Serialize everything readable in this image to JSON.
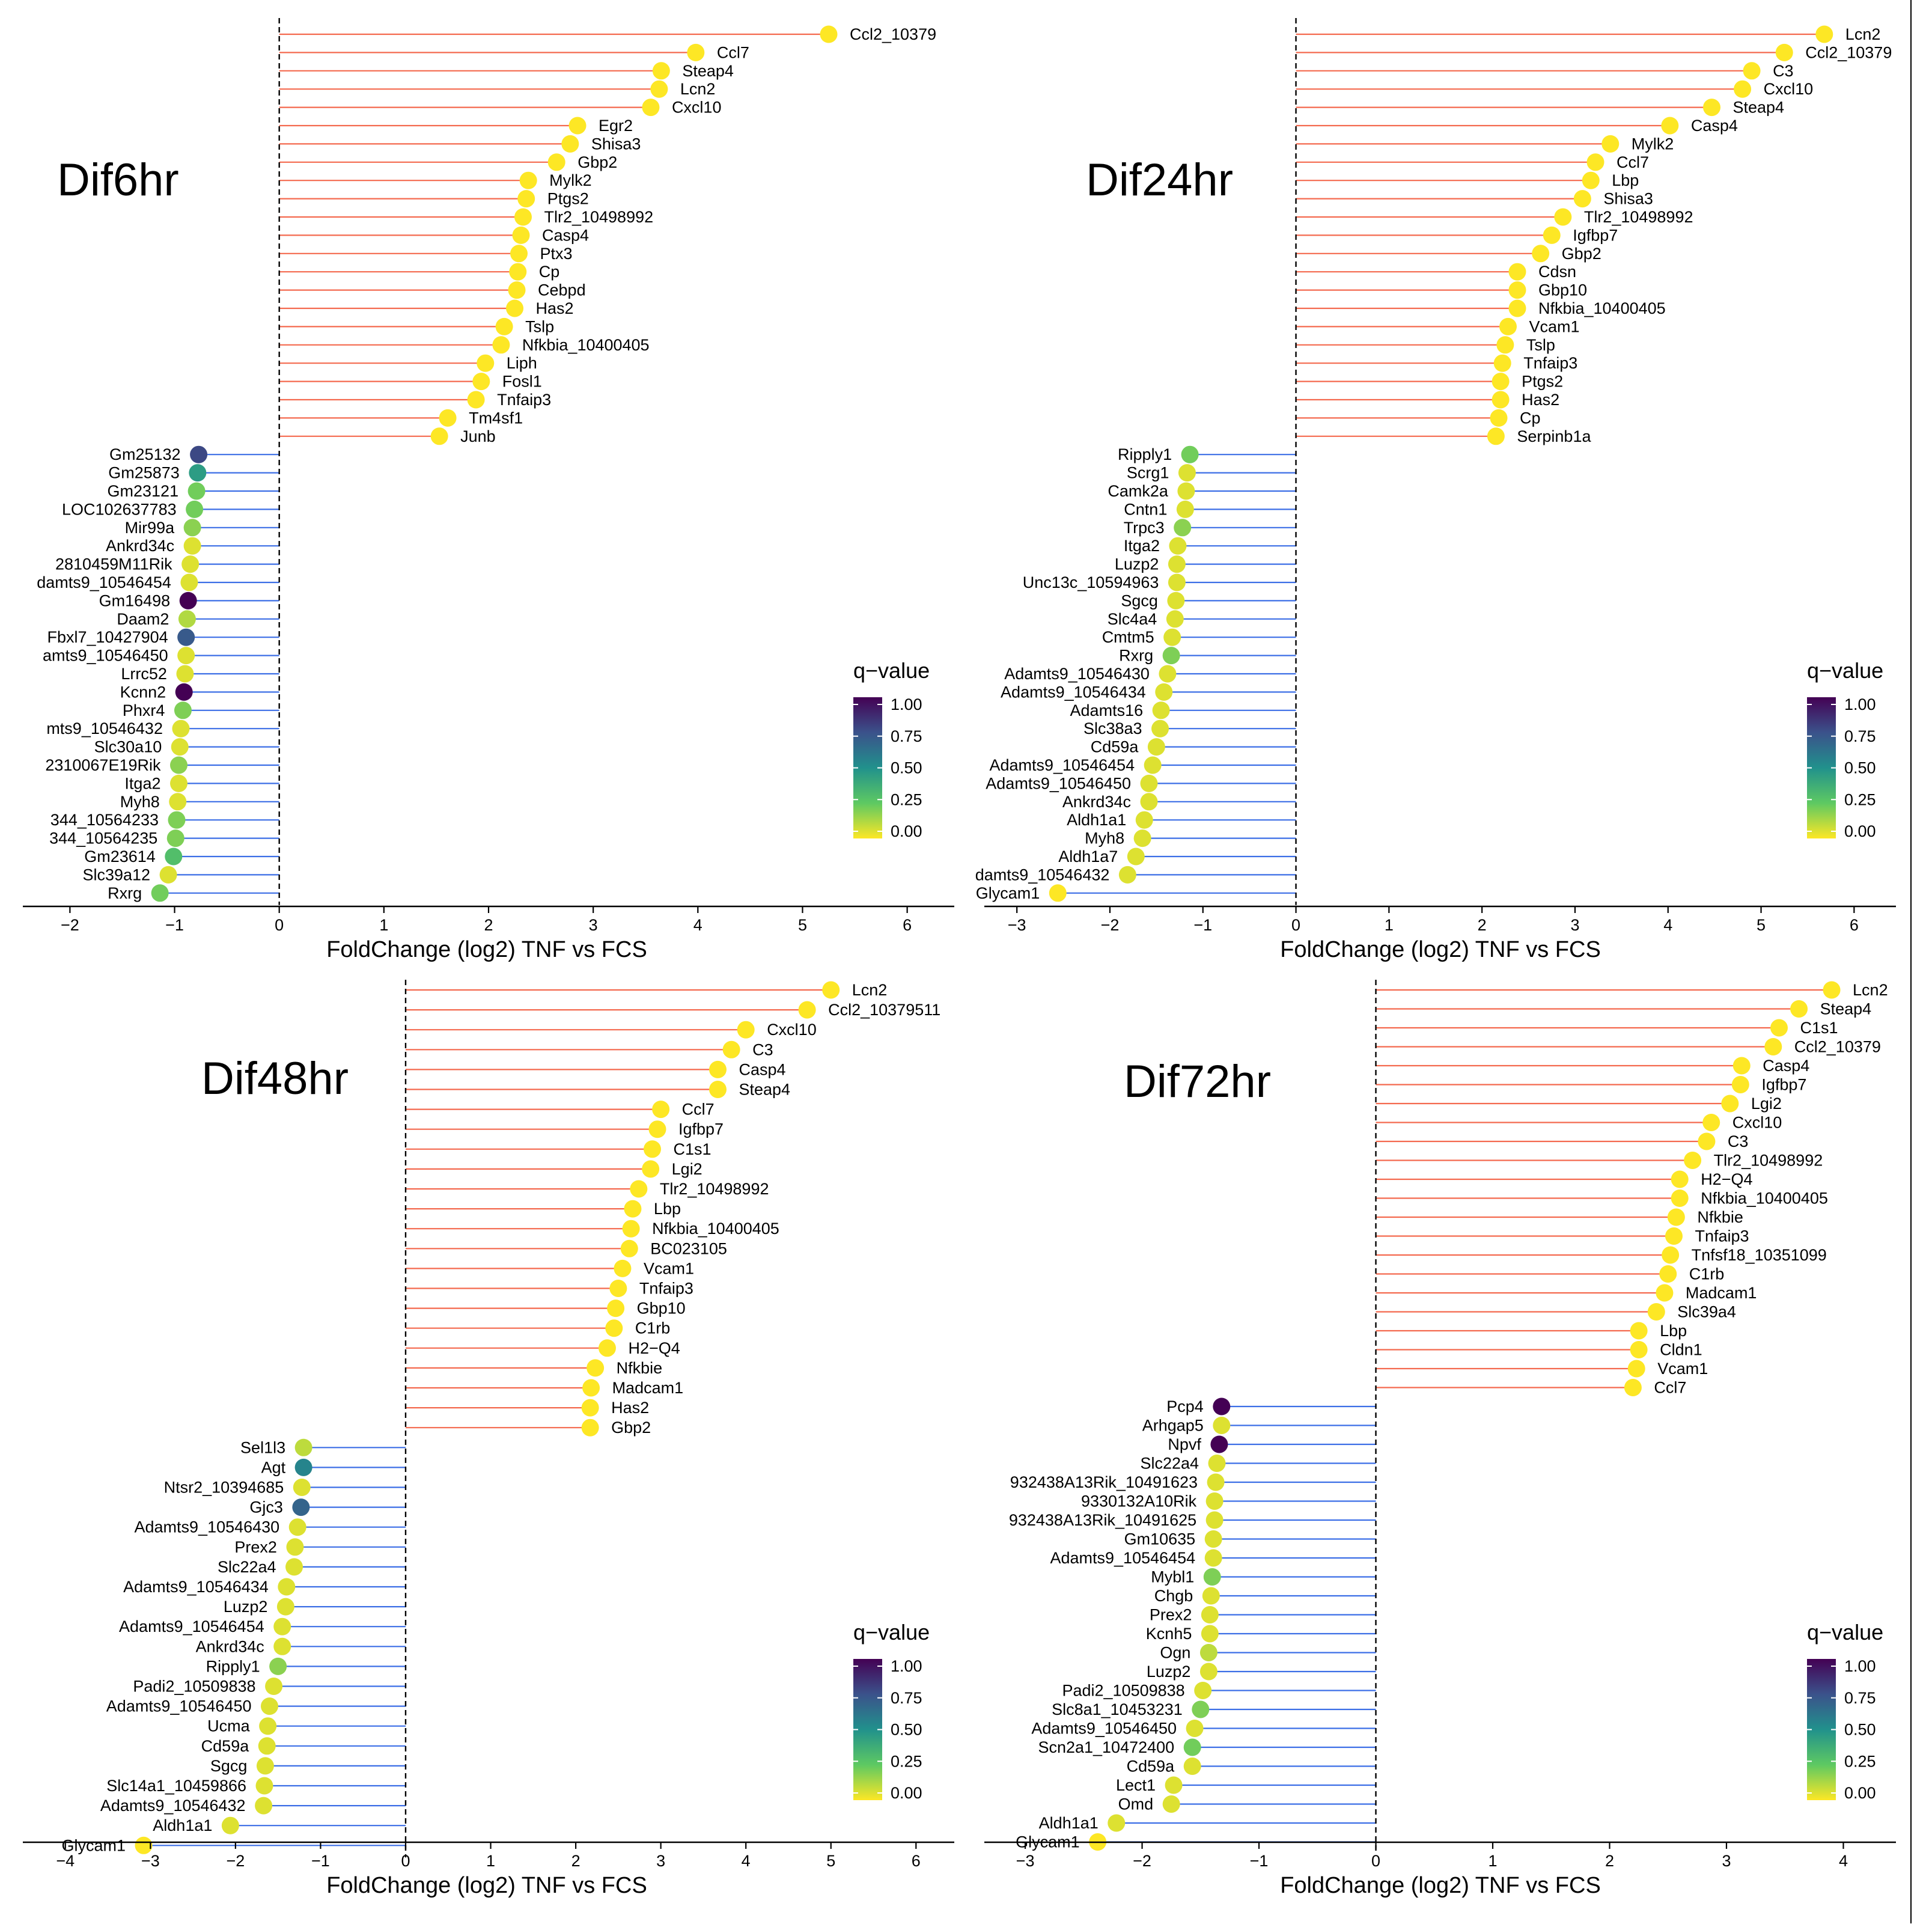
{
  "colors": {
    "up_stem": "#f4694e",
    "down_stem": "#3b6ee6",
    "axis": "#000000",
    "viridis": [
      "#fde725",
      "#5ec962",
      "#21918c",
      "#3b528b",
      "#440154"
    ]
  },
  "chart_data": [
    {
      "type": "lollipop",
      "title": "Dif6hr",
      "xlabel": "FoldChange (log2) TNF vs FCS",
      "xlim": [
        -2.45,
        6.45
      ],
      "xticks": [
        -2,
        -1,
        0,
        1,
        2,
        3,
        4,
        5,
        6
      ],
      "legend": {
        "title": "q−value",
        "ticks": [
          "1.00",
          "0.75",
          "0.50",
          "0.25",
          "0.00"
        ]
      },
      "genes": [
        {
          "label": "Ccl2_10379",
          "fc": 5.25,
          "q": 0.0
        },
        {
          "label": "Ccl7",
          "fc": 3.98,
          "q": 0.0
        },
        {
          "label": "Steap4",
          "fc": 3.65,
          "q": 0.0
        },
        {
          "label": "Lcn2",
          "fc": 3.63,
          "q": 0.0
        },
        {
          "label": "Cxcl10",
          "fc": 3.55,
          "q": 0.0
        },
        {
          "label": "Egr2",
          "fc": 2.85,
          "q": 0.0
        },
        {
          "label": "Shisa3",
          "fc": 2.78,
          "q": 0.0
        },
        {
          "label": "Gbp2",
          "fc": 2.65,
          "q": 0.0
        },
        {
          "label": "Mylk2",
          "fc": 2.38,
          "q": 0.0
        },
        {
          "label": "Ptgs2",
          "fc": 2.36,
          "q": 0.0
        },
        {
          "label": "Tlr2_10498992",
          "fc": 2.33,
          "q": 0.0
        },
        {
          "label": "Casp4",
          "fc": 2.31,
          "q": 0.0
        },
        {
          "label": "Ptx3",
          "fc": 2.29,
          "q": 0.0
        },
        {
          "label": "Cp",
          "fc": 2.28,
          "q": 0.0
        },
        {
          "label": "Cebpd",
          "fc": 2.27,
          "q": 0.0
        },
        {
          "label": "Has2",
          "fc": 2.25,
          "q": 0.0
        },
        {
          "label": "Tslp",
          "fc": 2.15,
          "q": 0.0
        },
        {
          "label": "Nfkbia_10400405",
          "fc": 2.12,
          "q": 0.0
        },
        {
          "label": "Liph",
          "fc": 1.97,
          "q": 0.0
        },
        {
          "label": "Fosl1",
          "fc": 1.93,
          "q": 0.0
        },
        {
          "label": "Tnfaip3",
          "fc": 1.88,
          "q": 0.0
        },
        {
          "label": "Tm4sf1",
          "fc": 1.61,
          "q": 0.0
        },
        {
          "label": "Junb",
          "fc": 1.53,
          "q": 0.0
        },
        {
          "label": "Gm25132",
          "fc": -0.77,
          "q": 0.78
        },
        {
          "label": "Gm25873",
          "fc": -0.78,
          "q": 0.45
        },
        {
          "label": "Gm23121",
          "fc": -0.79,
          "q": 0.22
        },
        {
          "label": "LOC102637783",
          "fc": -0.81,
          "q": 0.22
        },
        {
          "label": "Mir99a",
          "fc": -0.83,
          "q": 0.18
        },
        {
          "label": "Ankrd34c",
          "fc": -0.83,
          "q": 0.05
        },
        {
          "label": "2810459M11Rik",
          "fc": -0.85,
          "q": 0.05
        },
        {
          "label": "damts9_10546454",
          "fc": -0.86,
          "q": 0.05
        },
        {
          "label": "Gm16498",
          "fc": -0.87,
          "q": 1.0
        },
        {
          "label": "Daam2",
          "fc": -0.88,
          "q": 0.12
        },
        {
          "label": "Fbxl7_10427904",
          "fc": -0.89,
          "q": 0.72
        },
        {
          "label": "amts9_10546450",
          "fc": -0.89,
          "q": 0.05
        },
        {
          "label": "Lrrc52",
          "fc": -0.9,
          "q": 0.05
        },
        {
          "label": "Kcnn2",
          "fc": -0.91,
          "q": 1.0
        },
        {
          "label": "Phxr4",
          "fc": -0.92,
          "q": 0.2
        },
        {
          "label": "mts9_10546432",
          "fc": -0.94,
          "q": 0.05
        },
        {
          "label": "Slc30a10",
          "fc": -0.95,
          "q": 0.05
        },
        {
          "label": "2310067E19Rik",
          "fc": -0.96,
          "q": 0.18
        },
        {
          "label": "Itga2",
          "fc": -0.96,
          "q": 0.05
        },
        {
          "label": "Myh8",
          "fc": -0.97,
          "q": 0.05
        },
        {
          "label": "344_10564233",
          "fc": -0.98,
          "q": 0.2
        },
        {
          "label": "344_10564235",
          "fc": -0.99,
          "q": 0.2
        },
        {
          "label": "Gm23614",
          "fc": -1.01,
          "q": 0.3
        },
        {
          "label": "Slc39a12",
          "fc": -1.06,
          "q": 0.05
        },
        {
          "label": "Rxrg",
          "fc": -1.14,
          "q": 0.22
        }
      ]
    },
    {
      "type": "lollipop",
      "title": "Dif24hr",
      "xlabel": "FoldChange (log2) TNF vs FCS",
      "xlim": [
        -3.35,
        6.45
      ],
      "xticks": [
        -3,
        -2,
        -1,
        0,
        1,
        2,
        3,
        4,
        5,
        6
      ],
      "legend": {
        "title": "q−value",
        "ticks": [
          "1.00",
          "0.75",
          "0.50",
          "0.25",
          "0.00"
        ]
      },
      "genes": [
        {
          "label": "Lcn2",
          "fc": 5.68,
          "q": 0.0
        },
        {
          "label": "Ccl2_10379",
          "fc": 5.25,
          "q": 0.0
        },
        {
          "label": "C3",
          "fc": 4.9,
          "q": 0.0
        },
        {
          "label": "Cxcl10",
          "fc": 4.8,
          "q": 0.0
        },
        {
          "label": "Steap4",
          "fc": 4.47,
          "q": 0.0
        },
        {
          "label": "Casp4",
          "fc": 4.02,
          "q": 0.0
        },
        {
          "label": "Mylk2",
          "fc": 3.38,
          "q": 0.0
        },
        {
          "label": "Ccl7",
          "fc": 3.22,
          "q": 0.0
        },
        {
          "label": "Lbp",
          "fc": 3.17,
          "q": 0.0
        },
        {
          "label": "Shisa3",
          "fc": 3.08,
          "q": 0.0
        },
        {
          "label": "Tlr2_10498992",
          "fc": 2.87,
          "q": 0.0
        },
        {
          "label": "Igfbp7",
          "fc": 2.75,
          "q": 0.0
        },
        {
          "label": "Gbp2",
          "fc": 2.63,
          "q": 0.0
        },
        {
          "label": "Cdsn",
          "fc": 2.38,
          "q": 0.0
        },
        {
          "label": "Gbp10",
          "fc": 2.38,
          "q": 0.0
        },
        {
          "label": "Nfkbia_10400405",
          "fc": 2.38,
          "q": 0.0
        },
        {
          "label": "Vcam1",
          "fc": 2.28,
          "q": 0.0
        },
        {
          "label": "Tslp",
          "fc": 2.25,
          "q": 0.0
        },
        {
          "label": "Tnfaip3",
          "fc": 2.22,
          "q": 0.0
        },
        {
          "label": "Ptgs2",
          "fc": 2.2,
          "q": 0.0
        },
        {
          "label": "Has2",
          "fc": 2.2,
          "q": 0.0
        },
        {
          "label": "Cp",
          "fc": 2.18,
          "q": 0.0
        },
        {
          "label": "Serpinb1a",
          "fc": 2.15,
          "q": 0.0
        },
        {
          "label": "Ripply1",
          "fc": -1.14,
          "q": 0.22
        },
        {
          "label": "Scrg1",
          "fc": -1.17,
          "q": 0.05
        },
        {
          "label": "Camk2a",
          "fc": -1.18,
          "q": 0.05
        },
        {
          "label": "Cntn1",
          "fc": -1.19,
          "q": 0.05
        },
        {
          "label": "Trpc3",
          "fc": -1.22,
          "q": 0.18
        },
        {
          "label": "Itga2",
          "fc": -1.27,
          "q": 0.05
        },
        {
          "label": "Luzp2",
          "fc": -1.28,
          "q": 0.05
        },
        {
          "label": "Unc13c_10594963",
          "fc": -1.28,
          "q": 0.05
        },
        {
          "label": "Sgcg",
          "fc": -1.29,
          "q": 0.05
        },
        {
          "label": "Slc4a4",
          "fc": -1.3,
          "q": 0.05
        },
        {
          "label": "Cmtm5",
          "fc": -1.33,
          "q": 0.05
        },
        {
          "label": "Rxrg",
          "fc": -1.34,
          "q": 0.2
        },
        {
          "label": "Adamts9_10546430",
          "fc": -1.38,
          "q": 0.05
        },
        {
          "label": "Adamts9_10546434",
          "fc": -1.42,
          "q": 0.05
        },
        {
          "label": "Adamts16",
          "fc": -1.45,
          "q": 0.05
        },
        {
          "label": "Slc38a3",
          "fc": -1.46,
          "q": 0.05
        },
        {
          "label": "Cd59a",
          "fc": -1.5,
          "q": 0.05
        },
        {
          "label": "Adamts9_10546454",
          "fc": -1.54,
          "q": 0.05
        },
        {
          "label": "Adamts9_10546450",
          "fc": -1.58,
          "q": 0.05
        },
        {
          "label": "Ankrd34c",
          "fc": -1.58,
          "q": 0.05
        },
        {
          "label": "Aldh1a1",
          "fc": -1.63,
          "q": 0.05
        },
        {
          "label": "Myh8",
          "fc": -1.65,
          "q": 0.05
        },
        {
          "label": "Aldh1a7",
          "fc": -1.72,
          "q": 0.05
        },
        {
          "label": "damts9_10546432",
          "fc": -1.81,
          "q": 0.05
        },
        {
          "label": "Glycam1",
          "fc": -2.56,
          "q": 0.0
        }
      ]
    },
    {
      "type": "lollipop",
      "title": "Dif48hr",
      "xlabel": "FoldChange (log2) TNF vs FCS",
      "xlim": [
        -4.5,
        6.45
      ],
      "xticks": [
        -4,
        -3,
        -2,
        -1,
        0,
        1,
        2,
        3,
        4,
        5,
        6
      ],
      "legend": {
        "title": "q−value",
        "ticks": [
          "1.00",
          "0.75",
          "0.50",
          "0.25",
          "0.00"
        ]
      },
      "genes": [
        {
          "label": "Lcn2",
          "fc": 5.0,
          "q": 0.0
        },
        {
          "label": "Ccl2_10379511",
          "fc": 4.72,
          "q": 0.0
        },
        {
          "label": "Cxcl10",
          "fc": 4.0,
          "q": 0.0
        },
        {
          "label": "C3",
          "fc": 3.83,
          "q": 0.0
        },
        {
          "label": "Casp4",
          "fc": 3.67,
          "q": 0.0
        },
        {
          "label": "Steap4",
          "fc": 3.67,
          "q": 0.0
        },
        {
          "label": "Ccl7",
          "fc": 3.0,
          "q": 0.0
        },
        {
          "label": "Igfbp7",
          "fc": 2.96,
          "q": 0.0
        },
        {
          "label": "C1s1",
          "fc": 2.9,
          "q": 0.0
        },
        {
          "label": "Lgi2",
          "fc": 2.88,
          "q": 0.0
        },
        {
          "label": "Tlr2_10498992",
          "fc": 2.74,
          "q": 0.0
        },
        {
          "label": "Lbp",
          "fc": 2.67,
          "q": 0.0
        },
        {
          "label": "Nfkbia_10400405",
          "fc": 2.65,
          "q": 0.0
        },
        {
          "label": "BC023105",
          "fc": 2.63,
          "q": 0.0
        },
        {
          "label": "Vcam1",
          "fc": 2.55,
          "q": 0.0
        },
        {
          "label": "Tnfaip3",
          "fc": 2.5,
          "q": 0.0
        },
        {
          "label": "Gbp10",
          "fc": 2.47,
          "q": 0.0
        },
        {
          "label": "C1rb",
          "fc": 2.45,
          "q": 0.0
        },
        {
          "label": "H2−Q4",
          "fc": 2.37,
          "q": 0.0
        },
        {
          "label": "Nfkbie",
          "fc": 2.23,
          "q": 0.0
        },
        {
          "label": "Madcam1",
          "fc": 2.18,
          "q": 0.0
        },
        {
          "label": "Has2",
          "fc": 2.17,
          "q": 0.0
        },
        {
          "label": "Gbp2",
          "fc": 2.17,
          "q": 0.0
        },
        {
          "label": "Sel1l3",
          "fc": -1.2,
          "q": 0.1
        },
        {
          "label": "Agt",
          "fc": -1.2,
          "q": 0.55
        },
        {
          "label": "Ntsr2_10394685",
          "fc": -1.22,
          "q": 0.05
        },
        {
          "label": "Gjc3",
          "fc": -1.23,
          "q": 0.68
        },
        {
          "label": "Adamts9_10546430",
          "fc": -1.27,
          "q": 0.05
        },
        {
          "label": "Prex2",
          "fc": -1.3,
          "q": 0.05
        },
        {
          "label": "Slc22a4",
          "fc": -1.31,
          "q": 0.05
        },
        {
          "label": "Adamts9_10546434",
          "fc": -1.4,
          "q": 0.05
        },
        {
          "label": "Luzp2",
          "fc": -1.41,
          "q": 0.05
        },
        {
          "label": "Adamts9_10546454",
          "fc": -1.45,
          "q": 0.05
        },
        {
          "label": "Ankrd34c",
          "fc": -1.45,
          "q": 0.05
        },
        {
          "label": "Ripply1",
          "fc": -1.5,
          "q": 0.18
        },
        {
          "label": "Padi2_10509838",
          "fc": -1.55,
          "q": 0.05
        },
        {
          "label": "Adamts9_10546450",
          "fc": -1.6,
          "q": 0.05
        },
        {
          "label": "Ucma",
          "fc": -1.62,
          "q": 0.05
        },
        {
          "label": "Cd59a",
          "fc": -1.63,
          "q": 0.05
        },
        {
          "label": "Sgcg",
          "fc": -1.65,
          "q": 0.05
        },
        {
          "label": "Slc14a1_10459866",
          "fc": -1.66,
          "q": 0.05
        },
        {
          "label": "Adamts9_10546432",
          "fc": -1.67,
          "q": 0.05
        },
        {
          "label": "Aldh1a1",
          "fc": -2.06,
          "q": 0.05
        },
        {
          "label": "Glycam1",
          "fc": -3.08,
          "q": 0.0
        }
      ]
    },
    {
      "type": "lollipop",
      "title": "Dif72hr",
      "xlabel": "FoldChange (log2) TNF vs FCS",
      "xlim": [
        -3.35,
        4.45
      ],
      "xticks": [
        -3,
        -2,
        -1,
        0,
        1,
        2,
        3,
        4
      ],
      "legend": {
        "title": "q−value",
        "ticks": [
          "1.00",
          "0.75",
          "0.50",
          "0.25",
          "0.00"
        ]
      },
      "genes": [
        {
          "label": "Lcn2",
          "fc": 3.9,
          "q": 0.0
        },
        {
          "label": "Steap4",
          "fc": 3.62,
          "q": 0.0
        },
        {
          "label": "C1s1",
          "fc": 3.45,
          "q": 0.0
        },
        {
          "label": "Ccl2_10379",
          "fc": 3.4,
          "q": 0.0
        },
        {
          "label": "Casp4",
          "fc": 3.13,
          "q": 0.0
        },
        {
          "label": "Igfbp7",
          "fc": 3.12,
          "q": 0.0
        },
        {
          "label": "Lgi2",
          "fc": 3.03,
          "q": 0.0
        },
        {
          "label": "Cxcl10",
          "fc": 2.87,
          "q": 0.0
        },
        {
          "label": "C3",
          "fc": 2.83,
          "q": 0.0
        },
        {
          "label": "Tlr2_10498992",
          "fc": 2.71,
          "q": 0.0
        },
        {
          "label": "H2−Q4",
          "fc": 2.6,
          "q": 0.0
        },
        {
          "label": "Nfkbia_10400405",
          "fc": 2.6,
          "q": 0.0
        },
        {
          "label": "Nfkbie",
          "fc": 2.57,
          "q": 0.0
        },
        {
          "label": "Tnfaip3",
          "fc": 2.55,
          "q": 0.0
        },
        {
          "label": "Tnfsf18_10351099",
          "fc": 2.52,
          "q": 0.0
        },
        {
          "label": "C1rb",
          "fc": 2.5,
          "q": 0.0
        },
        {
          "label": "Madcam1",
          "fc": 2.47,
          "q": 0.0
        },
        {
          "label": "Slc39a4",
          "fc": 2.4,
          "q": 0.0
        },
        {
          "label": "Lbp",
          "fc": 2.25,
          "q": 0.0
        },
        {
          "label": "Cldn1",
          "fc": 2.25,
          "q": 0.0
        },
        {
          "label": "Vcam1",
          "fc": 2.23,
          "q": 0.0
        },
        {
          "label": "Ccl7",
          "fc": 2.2,
          "q": 0.0
        },
        {
          "label": "Pcp4",
          "fc": -1.32,
          "q": 1.0
        },
        {
          "label": "Arhgap5",
          "fc": -1.32,
          "q": 0.05
        },
        {
          "label": "Npvf",
          "fc": -1.34,
          "q": 1.0
        },
        {
          "label": "Slc22a4",
          "fc": -1.36,
          "q": 0.05
        },
        {
          "label": "932438A13Rik_10491623",
          "fc": -1.37,
          "q": 0.05
        },
        {
          "label": "9330132A10Rik",
          "fc": -1.38,
          "q": 0.05
        },
        {
          "label": "932438A13Rik_10491625",
          "fc": -1.38,
          "q": 0.05
        },
        {
          "label": "Gm10635",
          "fc": -1.39,
          "q": 0.05
        },
        {
          "label": "Adamts9_10546454",
          "fc": -1.39,
          "q": 0.05
        },
        {
          "label": "Mybl1",
          "fc": -1.4,
          "q": 0.2
        },
        {
          "label": "Chgb",
          "fc": -1.41,
          "q": 0.05
        },
        {
          "label": "Prex2",
          "fc": -1.42,
          "q": 0.05
        },
        {
          "label": "Kcnh5",
          "fc": -1.42,
          "q": 0.05
        },
        {
          "label": "Ogn",
          "fc": -1.43,
          "q": 0.1
        },
        {
          "label": "Luzp2",
          "fc": -1.43,
          "q": 0.05
        },
        {
          "label": "Padi2_10509838",
          "fc": -1.48,
          "q": 0.05
        },
        {
          "label": "Slc8a1_10453231",
          "fc": -1.5,
          "q": 0.2
        },
        {
          "label": "Adamts9_10546450",
          "fc": -1.55,
          "q": 0.05
        },
        {
          "label": "Scn2a1_10472400",
          "fc": -1.57,
          "q": 0.22
        },
        {
          "label": "Cd59a",
          "fc": -1.57,
          "q": 0.05
        },
        {
          "label": "Lect1",
          "fc": -1.73,
          "q": 0.05
        },
        {
          "label": "Omd",
          "fc": -1.75,
          "q": 0.05
        },
        {
          "label": "Aldh1a1",
          "fc": -2.22,
          "q": 0.05
        },
        {
          "label": "Glycam1",
          "fc": -2.38,
          "q": 0.0
        }
      ]
    }
  ]
}
